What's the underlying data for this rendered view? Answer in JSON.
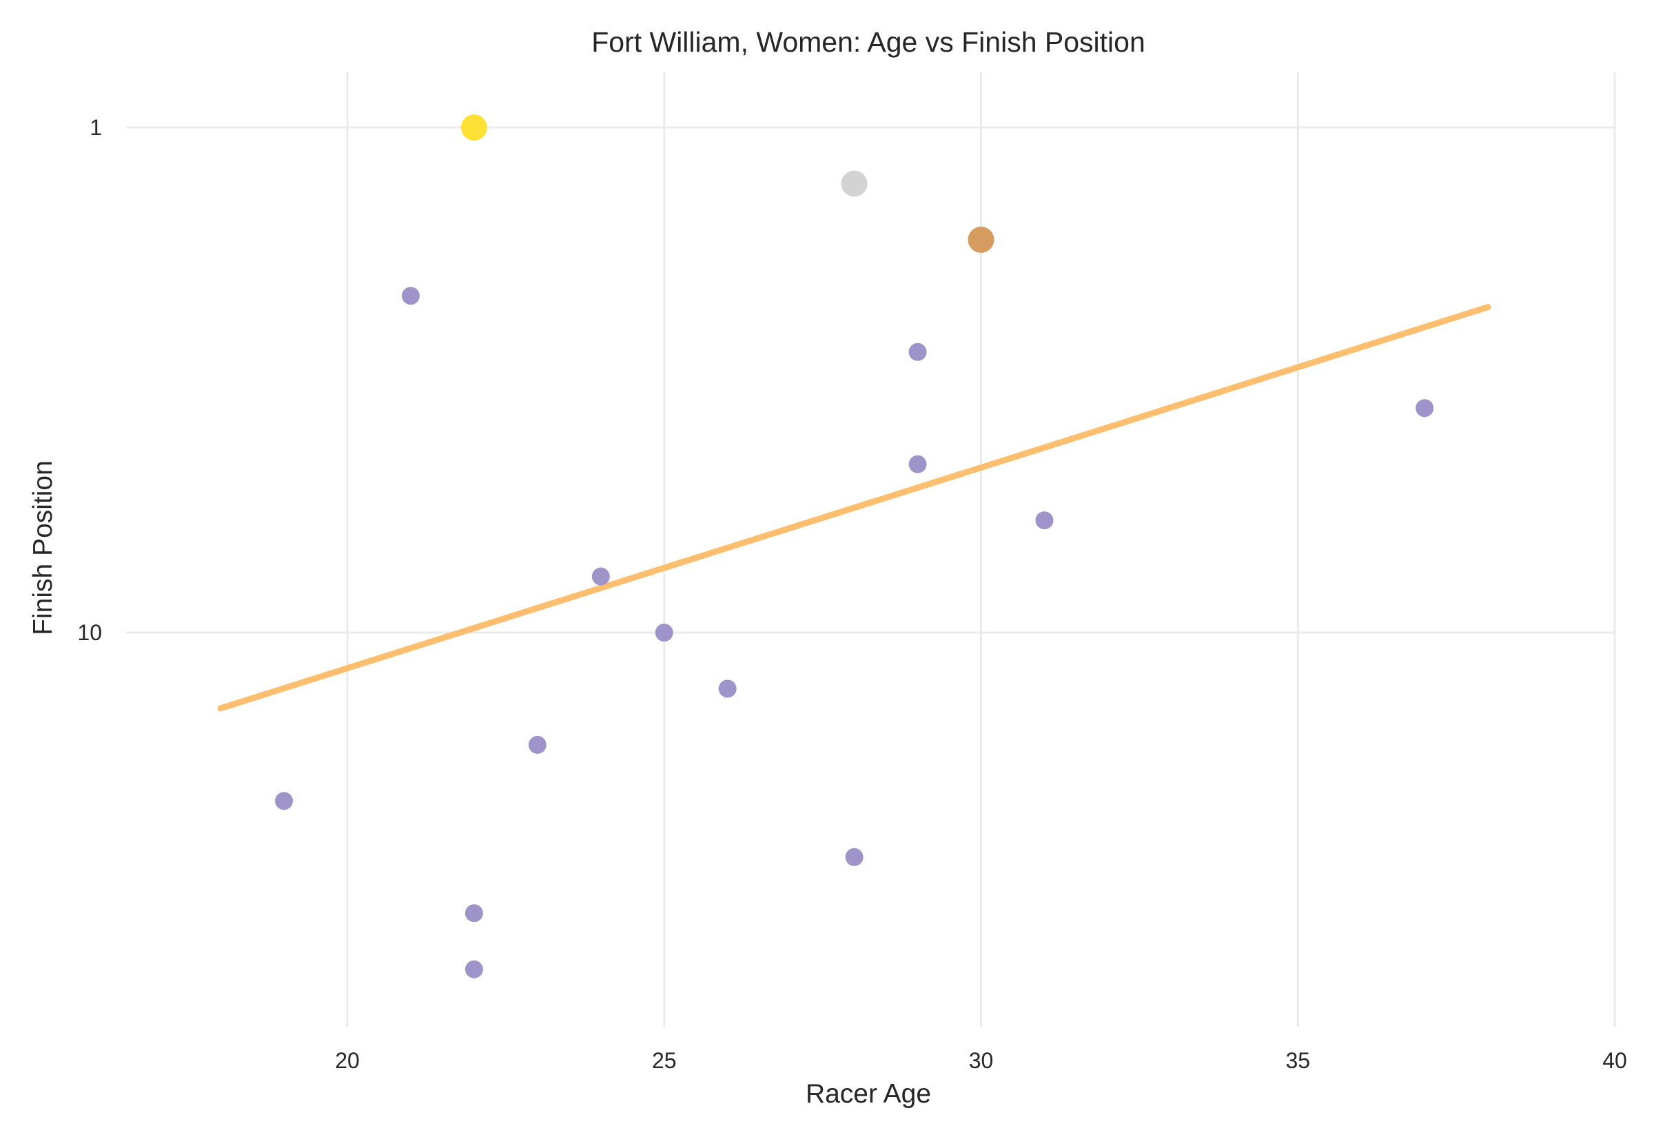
{
  "chart_data": {
    "type": "scatter",
    "title": "Fort William, Women: Age vs Finish Position",
    "xlabel": "Racer Age",
    "ylabel": "Finish Position",
    "xlim": [
      15.5,
      40
    ],
    "x_ticks": [
      20,
      25,
      30,
      35,
      40
    ],
    "y_scale": "linear, inverted (position 1 at top)",
    "ylim": [
      17.2,
      0
    ],
    "y_ticks": [
      1,
      10
    ],
    "grid": true,
    "legend": "none",
    "points": [
      {
        "age": 22,
        "position": 1,
        "medal": "gold",
        "color": "#ffe135"
      },
      {
        "age": 28,
        "position": 2,
        "medal": "silver",
        "color": "#d3d3d3"
      },
      {
        "age": 30,
        "position": 3,
        "medal": "bronze",
        "color": "#d69b5f"
      },
      {
        "age": 21,
        "position": 4,
        "color": "#9e94c9"
      },
      {
        "age": 29,
        "position": 5,
        "color": "#9e94c9"
      },
      {
        "age": 37,
        "position": 6,
        "color": "#9e94c9"
      },
      {
        "age": 29,
        "position": 7,
        "color": "#9e94c9"
      },
      {
        "age": 31,
        "position": 8,
        "color": "#9e94c9"
      },
      {
        "age": 24,
        "position": 9,
        "color": "#9e94c9"
      },
      {
        "age": 25,
        "position": 10,
        "color": "#9e94c9"
      },
      {
        "age": 26,
        "position": 11,
        "color": "#9e94c9"
      },
      {
        "age": 23,
        "position": 12,
        "color": "#9e94c9"
      },
      {
        "age": 19,
        "position": 13,
        "color": "#9e94c9"
      },
      {
        "age": 28,
        "position": 14,
        "color": "#9e94c9"
      },
      {
        "age": 22,
        "position": 15,
        "color": "#9e94c9"
      },
      {
        "age": 22,
        "position": 16,
        "color": "#9e94c9"
      }
    ],
    "trend_line": {
      "color": "#fdbf6f",
      "from": {
        "age": 18,
        "position": 11.35
      },
      "to": {
        "age": 38,
        "position": 4.2
      }
    }
  }
}
